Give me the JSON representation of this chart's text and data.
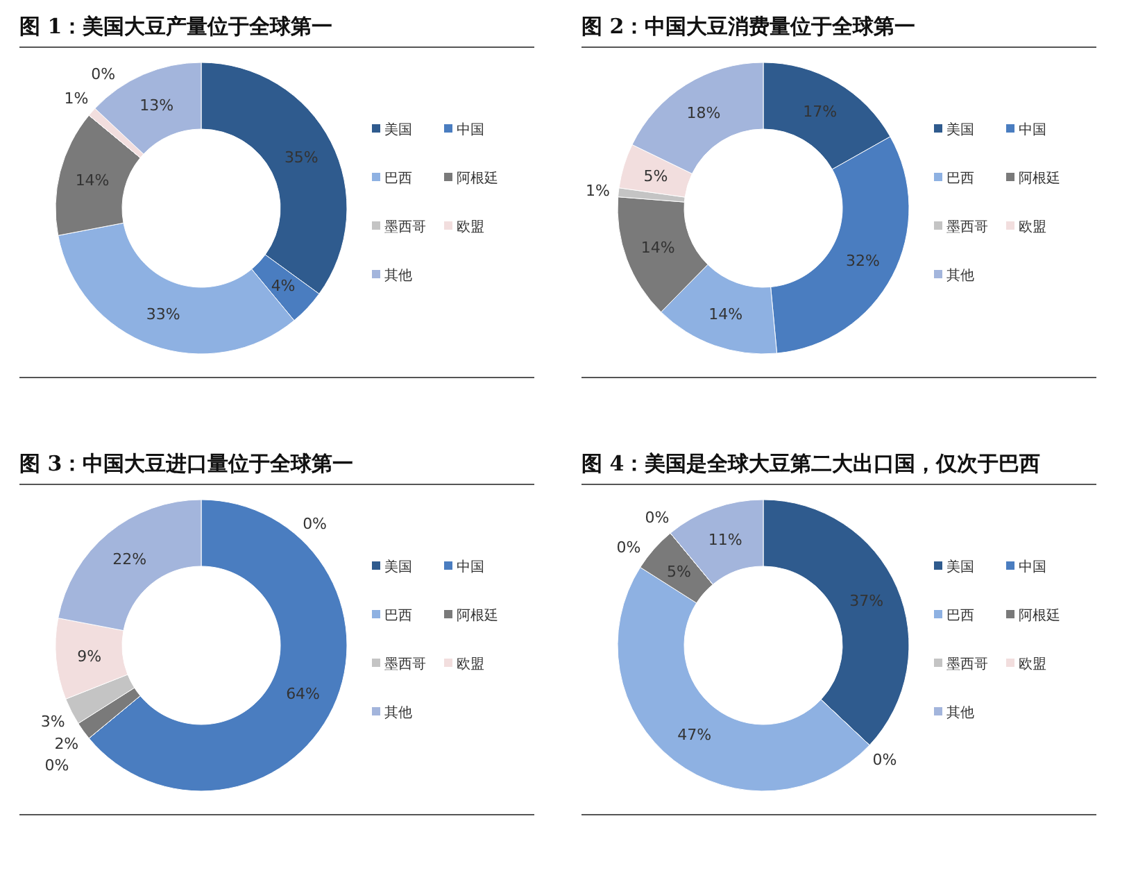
{
  "chart_data": [
    {
      "type": "donut",
      "title": "图 1：美国大豆产量位于全球第一",
      "categories": [
        "美国",
        "中国",
        "巴西",
        "阿根廷",
        "墨西哥",
        "欧盟",
        "其他"
      ],
      "values": [
        35,
        4,
        33,
        14,
        0,
        1,
        13
      ],
      "value_labels": [
        "35%",
        "4%",
        "33%",
        "14%",
        "0%",
        "1%",
        "13%"
      ],
      "colors": [
        "#2f5b8e",
        "#4a7dc0",
        "#8eb1e2",
        "#7a7a7a",
        "#c4c4c4",
        "#f2dede",
        "#a3b5dc"
      ],
      "legend": "right"
    },
    {
      "type": "donut",
      "title": "图 2：中国大豆消费量位于全球第一",
      "categories": [
        "美国",
        "中国",
        "巴西",
        "阿根廷",
        "墨西哥",
        "欧盟",
        "其他"
      ],
      "values": [
        17,
        32,
        14,
        14,
        1,
        5,
        18
      ],
      "value_labels": [
        "17%",
        "32%",
        "14%",
        "14%",
        "1%",
        "5%",
        "18%"
      ],
      "colors": [
        "#2f5b8e",
        "#4a7dc0",
        "#8eb1e2",
        "#7a7a7a",
        "#c4c4c4",
        "#f2dede",
        "#a3b5dc"
      ],
      "legend": "right"
    },
    {
      "type": "donut",
      "title": "图 3：中国大豆进口量位于全球第一",
      "categories": [
        "美国",
        "中国",
        "巴西",
        "阿根廷",
        "墨西哥",
        "欧盟",
        "其他"
      ],
      "values": [
        0,
        64,
        0,
        2,
        3,
        9,
        22
      ],
      "value_labels": [
        "0%",
        "64%",
        "0%",
        "2%",
        "3%",
        "9%",
        "22%"
      ],
      "colors": [
        "#2f5b8e",
        "#4a7dc0",
        "#8eb1e2",
        "#7a7a7a",
        "#c4c4c4",
        "#f2dede",
        "#a3b5dc"
      ],
      "legend": "right"
    },
    {
      "type": "donut",
      "title": "图 4：美国是全球大豆第二大出口国，仅次于巴西",
      "categories": [
        "美国",
        "中国",
        "巴西",
        "阿根廷",
        "墨西哥",
        "欧盟",
        "其他"
      ],
      "values": [
        37,
        0,
        47,
        5,
        0,
        0,
        11
      ],
      "value_labels": [
        "37%",
        "0%",
        "47%",
        "5%",
        "0%",
        "0%",
        "11%"
      ],
      "colors": [
        "#2f5b8e",
        "#4a7dc0",
        "#8eb1e2",
        "#7a7a7a",
        "#c4c4c4",
        "#f2dede",
        "#a3b5dc"
      ],
      "legend": "right"
    }
  ]
}
